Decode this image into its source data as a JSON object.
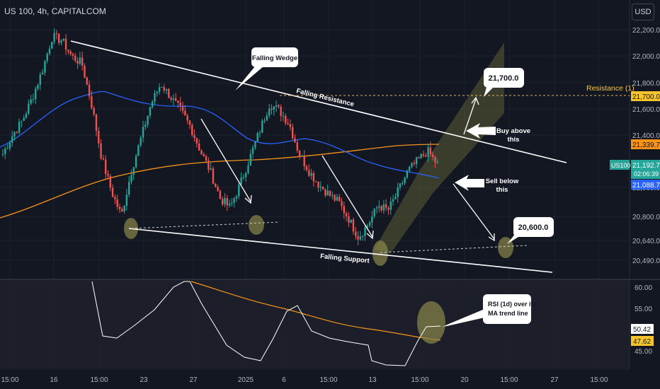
{
  "header": {
    "symbol_title": "US 100, 4h, CAPITALCOM",
    "currency_button": "USD"
  },
  "colors": {
    "background": "#131722",
    "bullish": "#26a69a",
    "bearish": "#ef5350",
    "ma_blue": "#2962ff",
    "ma_orange": "#f7931a",
    "resistance_label": "#ffca28",
    "channel_fill": "#6b6b3a",
    "rsi_line": "#ffffff",
    "rsi_ma": "#f7931a"
  },
  "price_axis": {
    "ticks": [
      "22,200.0",
      "22,000.0",
      "21,800.0",
      "21,600.0",
      "21,400.0",
      "21,000.0",
      "20,800.0",
      "20,640.0",
      "20,490.0"
    ],
    "badges": {
      "resistance": "21,700.0",
      "orange_ma": "21,339.7",
      "current_price": "21,192.7",
      "countdown": "02:06:39",
      "blue_ma": "21,088.7",
      "symbol": "US100"
    }
  },
  "rsi_axis": {
    "ticks": [
      "60.00",
      "55.00",
      "45.00"
    ],
    "badges": {
      "rsi": "50.42",
      "rsi_ma": "47.62"
    }
  },
  "time_axis": {
    "labels": [
      "15:00",
      "16",
      "15:00",
      "23",
      "27",
      "2025",
      "6",
      "15:00",
      "13",
      "15:00",
      "20",
      "15:00",
      "27",
      "15:00"
    ]
  },
  "annotations": {
    "falling_wedge": "Falling Wedge",
    "falling_resistance": "Falling Resistance",
    "falling_support": "Falling Support",
    "resistance_label": "Resistance (1)",
    "target_high": "21,700.0",
    "target_low": "20,600.0",
    "buy_above": "Buy above this",
    "sell_below": "Sell below this",
    "rsi_note": "RSI (1d) over its MA trend line"
  },
  "chart_data": {
    "type": "candlestick",
    "symbol": "US100",
    "timeframe": "4h",
    "levels": {
      "resistance": 21700.0,
      "target_low": 20600.0,
      "current_price": 21192.7,
      "orange_ma": 21339.7,
      "blue_ma": 21088.7
    },
    "rsi": {
      "value": 50.42,
      "ma": 47.62
    },
    "close_path": [
      21280,
      21420,
      21530,
      21700,
      21900,
      22150,
      22120,
      22000,
      21950,
      21640,
      21250,
      21000,
      20820,
      21150,
      21400,
      21650,
      21800,
      21700,
      21600,
      21480,
      21300,
      21150,
      20950,
      20880,
      21050,
      21250,
      21450,
      21650,
      21600,
      21500,
      21280,
      21150,
      21050,
      20980,
      20920,
      20800,
      20660,
      20760,
      20900,
      20860,
      21000,
      21150,
      21230,
      21300,
      21200
    ]
  }
}
